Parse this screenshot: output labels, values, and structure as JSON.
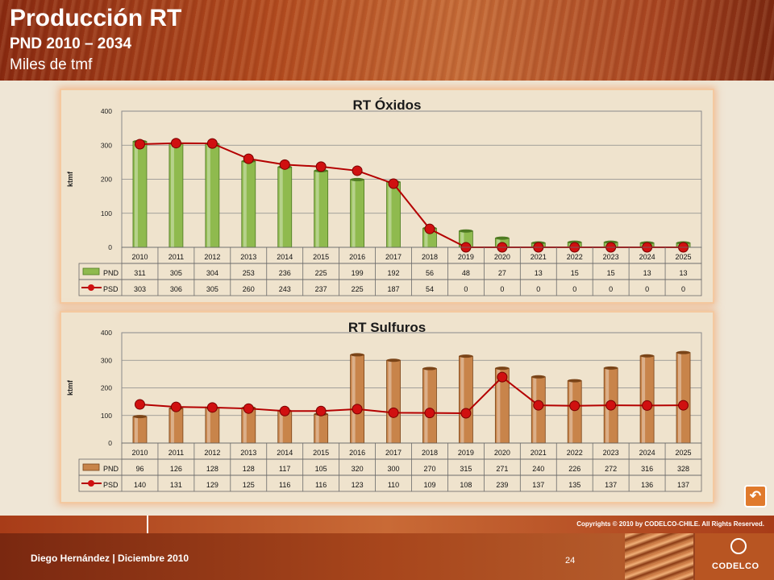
{
  "header": {
    "title": "Producción RT",
    "subtitle": "PND 2010 – 2034",
    "units": "Miles de tmf"
  },
  "colors": {
    "pnd_oxidos": "#8fba4e",
    "pnd_sulfuros": "#c8844a",
    "psd_line": "#b40000",
    "psd_marker": "#d01010"
  },
  "footer": {
    "copyright": "Copyrights © 2010 by CODELCO-CHILE.  All Rights Reserved.",
    "author": "Diego Hernández | Diciembre 2010",
    "page_number": "24",
    "logo_text": "CODELCO",
    "return_icon": "return-arrow-icon",
    "return_glyph": "↶"
  },
  "chart_data": [
    {
      "type": "bar",
      "title": "RT Óxidos",
      "ylabel": "ktmf",
      "ylim": [
        0,
        400
      ],
      "yticks": [
        0,
        100,
        200,
        300,
        400
      ],
      "categories": [
        "2010",
        "2011",
        "2012",
        "2013",
        "2014",
        "2015",
        "2016",
        "2017",
        "2018",
        "2019",
        "2020",
        "2021",
        "2022",
        "2023",
        "2024",
        "2025"
      ],
      "series": [
        {
          "name": "PND",
          "kind": "bar",
          "values": [
            311,
            305,
            304,
            253,
            236,
            225,
            199,
            192,
            56,
            48,
            27,
            13,
            15,
            15,
            13,
            13
          ]
        },
        {
          "name": "PSD",
          "kind": "line",
          "values": [
            303,
            306,
            305,
            260,
            243,
            237,
            225,
            187,
            54,
            0,
            0,
            0,
            0,
            0,
            0,
            0
          ]
        }
      ],
      "legend": "data-table"
    },
    {
      "type": "bar",
      "title": "RT Sulfuros",
      "ylabel": "ktmf",
      "ylim": [
        0,
        400
      ],
      "yticks": [
        0,
        100,
        200,
        300,
        400
      ],
      "categories": [
        "2010",
        "2011",
        "2012",
        "2013",
        "2014",
        "2015",
        "2016",
        "2017",
        "2018",
        "2019",
        "2020",
        "2021",
        "2022",
        "2023",
        "2024",
        "2025"
      ],
      "series": [
        {
          "name": "PND",
          "kind": "bar",
          "values": [
            96,
            126,
            128,
            128,
            117,
            105,
            320,
            300,
            270,
            315,
            271,
            240,
            226,
            272,
            316,
            328
          ]
        },
        {
          "name": "PSD",
          "kind": "line",
          "values": [
            140,
            131,
            129,
            125,
            116,
            116,
            123,
            110,
            109,
            108,
            239,
            137,
            135,
            137,
            136,
            137
          ]
        }
      ],
      "legend": "data-table"
    }
  ]
}
